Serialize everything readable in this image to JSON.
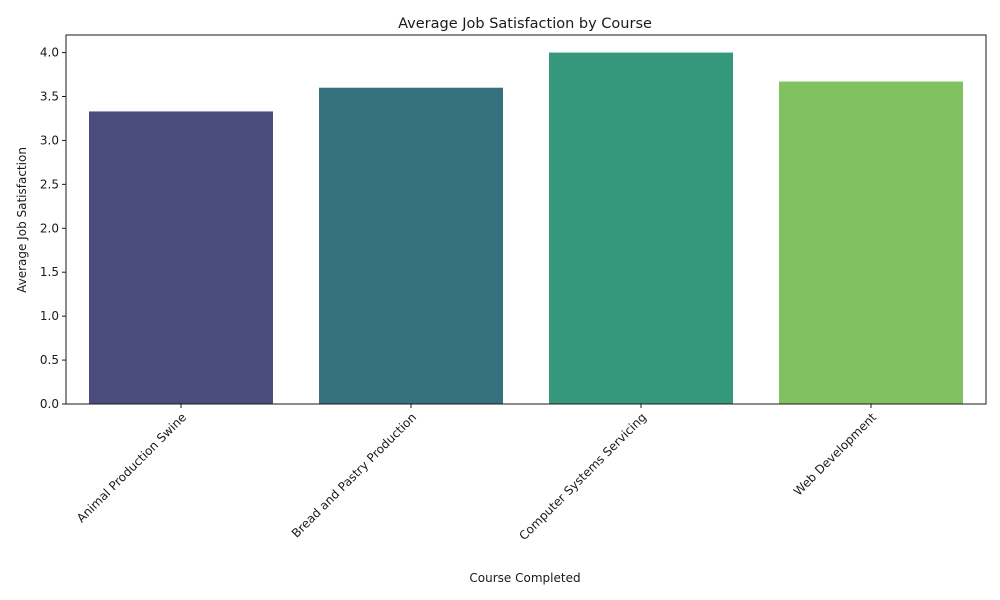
{
  "chart_data": {
    "type": "bar",
    "title": "Average Job Satisfaction by Course",
    "xlabel": "Course Completed",
    "ylabel": "Average Job Satisfaction",
    "categories": [
      "Animal Production Swine",
      "Bread and Pastry Production",
      "Computer Systems Servicing",
      "Web Development"
    ],
    "values": [
      3.33,
      3.6,
      4.0,
      3.67
    ],
    "colors": [
      "#4a4c7d",
      "#36717f",
      "#35987d",
      "#80c260"
    ],
    "ylim": [
      0,
      4.2
    ],
    "yticks": [
      "0.0",
      "0.5",
      "1.0",
      "1.5",
      "2.0",
      "2.5",
      "3.0",
      "3.5",
      "4.0"
    ],
    "grid": false,
    "legend": "none"
  }
}
